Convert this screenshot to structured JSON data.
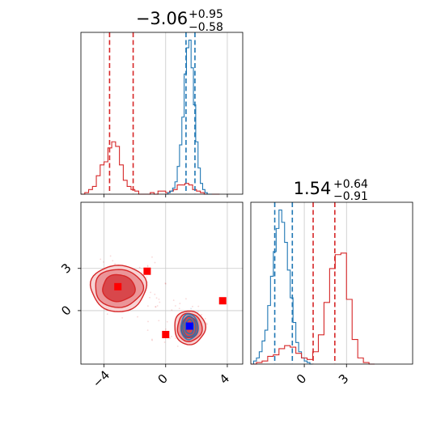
{
  "chart_data": [
    {
      "panel": "marginal-param-1",
      "type": "histogram",
      "title": {
        "median": "−3.06",
        "plus": "+0.95",
        "minus": "−0.58"
      },
      "xlim": [
        -5.5,
        5
      ],
      "x_ticks": [
        -4,
        0,
        4
      ],
      "x_tick_labels": [
        "−4",
        "0",
        "4"
      ],
      "grid": true,
      "series": [
        {
          "color": "#d62728",
          "bin_edges": [
            -5.5,
            -5.25,
            -5.0,
            -4.75,
            -4.5,
            -4.25,
            -4.0,
            -3.75,
            -3.5,
            -3.25,
            -3.0,
            -2.75,
            -2.5,
            -2.25,
            -2.0,
            -1.75,
            -1.5,
            -1.25,
            -1.0,
            -0.75,
            -0.5,
            -0.25,
            0.0,
            0.25,
            0.5,
            0.75,
            1.0,
            1.25,
            1.5,
            1.75,
            2.0,
            2.25,
            2.5,
            2.75,
            3.0,
            3.25,
            3.5
          ],
          "counts": [
            0.0,
            0.01,
            0.03,
            0.05,
            0.12,
            0.19,
            0.21,
            0.3,
            0.34,
            0.31,
            0.19,
            0.09,
            0.05,
            0.03,
            0.02,
            0.0,
            0.0,
            0.0,
            0.01,
            0.0,
            0.02,
            0.02,
            0.01,
            0.02,
            0.03,
            0.06,
            0.06,
            0.07,
            0.06,
            0.03,
            0.02,
            0.01,
            0.0,
            0.0,
            0.0,
            0.0
          ],
          "quantiles": [
            -3.64,
            -2.11
          ]
        },
        {
          "color": "#1f77b4",
          "bin_edges": [
            0.0,
            0.15,
            0.3,
            0.45,
            0.6,
            0.75,
            0.9,
            1.05,
            1.2,
            1.35,
            1.5,
            1.65,
            1.8,
            1.95,
            2.1,
            2.25,
            2.4,
            2.55,
            2.7,
            2.85,
            3.0
          ],
          "counts": [
            0.0,
            0.01,
            0.02,
            0.04,
            0.08,
            0.18,
            0.32,
            0.5,
            0.78,
            0.95,
            1.0,
            0.82,
            0.58,
            0.34,
            0.17,
            0.07,
            0.03,
            0.01,
            0.0,
            0.0
          ],
          "quantiles": [
            1.32,
            1.9
          ]
        }
      ]
    },
    {
      "panel": "joint-param-1-param-2",
      "type": "contour-scatter",
      "xlim": [
        -5.5,
        5
      ],
      "ylim": [
        -3.8,
        7.7
      ],
      "x_ticks": [
        -4,
        0,
        4
      ],
      "x_tick_labels": [
        "−4",
        "0",
        "4"
      ],
      "y_ticks": [
        0,
        3
      ],
      "y_tick_labels": [
        "0",
        "3"
      ],
      "grid": true,
      "series": [
        {
          "color": "#d62728",
          "contour_center": [
            -3.06,
            1.6
          ],
          "contour_radii": [
            [
              1.8,
              1.65
            ],
            [
              1.55,
              1.35
            ],
            [
              1.05,
              0.95
            ]
          ]
        },
        {
          "color": "#d62728",
          "contour_center": [
            1.55,
            -1.2
          ],
          "contour_radii": [
            [
              1.0,
              1.2
            ],
            [
              0.8,
              1.0
            ],
            [
              0.55,
              0.75
            ]
          ]
        },
        {
          "color": "#1f77b4",
          "contour_center": [
            1.54,
            -1.15
          ],
          "contour_radii": [
            [
              0.55,
              0.9
            ],
            [
              0.42,
              0.72
            ],
            [
              0.28,
              0.5
            ]
          ]
        }
      ],
      "markers": [
        {
          "color": "#ff0000",
          "shape": "square",
          "x": -3.1,
          "y": 1.7
        },
        {
          "color": "#ff0000",
          "shape": "square",
          "x": -1.2,
          "y": 2.8
        },
        {
          "color": "#ff0000",
          "shape": "square",
          "x": 3.7,
          "y": 0.7
        },
        {
          "color": "#ff0000",
          "shape": "square",
          "x": 0.0,
          "y": -1.7
        },
        {
          "color": "#0000ff",
          "shape": "square",
          "x": 1.55,
          "y": -1.1
        }
      ]
    },
    {
      "panel": "marginal-param-2",
      "type": "histogram",
      "title": {
        "median": "1.54",
        "plus": "+0.64",
        "minus": "−0.91"
      },
      "xlim": [
        -3.8,
        7.7
      ],
      "x_ticks": [
        0,
        3
      ],
      "x_tick_labels": [
        "0",
        "3"
      ],
      "grid": true,
      "series": [
        {
          "color": "#1f77b4",
          "bin_edges": [
            -3.8,
            -3.6,
            -3.4,
            -3.2,
            -3.0,
            -2.8,
            -2.6,
            -2.4,
            -2.2,
            -2.0,
            -1.8,
            -1.6,
            -1.4,
            -1.2,
            -1.0,
            -0.8,
            -0.6,
            -0.4,
            -0.2,
            0.0,
            0.2,
            0.4,
            0.6
          ],
          "counts": [
            0.0,
            0.02,
            0.04,
            0.08,
            0.15,
            0.22,
            0.38,
            0.57,
            0.73,
            0.88,
            1.0,
            0.92,
            0.79,
            0.61,
            0.43,
            0.27,
            0.14,
            0.08,
            0.04,
            0.02,
            0.01,
            0.0
          ],
          "quantiles": [
            -2.1,
            -0.85
          ]
        },
        {
          "color": "#d62728",
          "bin_edges": [
            -3.8,
            -3.4,
            -3.0,
            -2.6,
            -2.2,
            -1.8,
            -1.4,
            -1.0,
            -0.6,
            -0.2,
            0.2,
            0.6,
            1.0,
            1.4,
            1.8,
            2.2,
            2.6,
            3.0,
            3.4,
            3.8,
            4.2,
            4.6,
            5.0
          ],
          "counts": [
            0.0,
            0.01,
            0.02,
            0.05,
            0.06,
            0.1,
            0.12,
            0.11,
            0.07,
            0.04,
            0.03,
            0.08,
            0.19,
            0.4,
            0.62,
            0.71,
            0.72,
            0.42,
            0.16,
            0.04,
            0.01,
            0.0
          ],
          "quantiles": [
            0.63,
            2.17
          ]
        }
      ]
    }
  ]
}
